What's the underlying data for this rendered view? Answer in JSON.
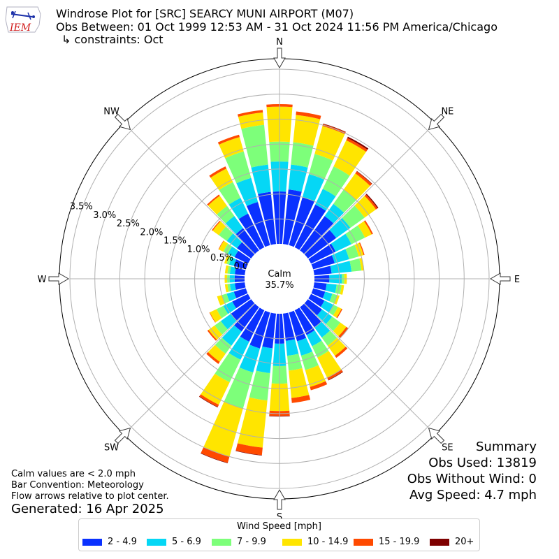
{
  "header": {
    "logo_text": "IEM",
    "title": "Windrose Plot for [SRC] SEARCY MUNI AIRPORT (M07)",
    "period": "Obs Between: 01 Oct 1999 12:53 AM - 31 Oct 2024 11:56 PM America/Chicago",
    "constraints": "↳ constraints: Oct"
  },
  "summary": {
    "heading": "Summary",
    "obs_used": "Obs Used: 13819",
    "obs_without_wind": "Obs Without Wind: 0",
    "avg_speed": "Avg Speed: 4.7 mph"
  },
  "notes": {
    "calm": "Calm values are < 2.0 mph",
    "convention": "Bar Convention: Meteorology",
    "flow": "Flow arrows relative to plot center.",
    "generated": "Generated: 16 Apr 2025"
  },
  "chart_data": {
    "type": "windrose",
    "calm_label": "Calm",
    "calm_value": "35.7%",
    "radial_ticks": [
      "0.0%",
      "0.5%",
      "1.0%",
      "1.5%",
      "2.0%",
      "2.5%",
      "3.0%",
      "3.5%"
    ],
    "radial_values": [
      0,
      0.5,
      1.0,
      1.5,
      2.0,
      2.5,
      3.0,
      3.5
    ],
    "direction_labels": [
      "N",
      "NE",
      "E",
      "SE",
      "S",
      "SW",
      "W",
      "NW"
    ],
    "legend_title": "Wind Speed [mph]",
    "speed_bins": [
      {
        "label": "2 - 4.9",
        "color": "#0a31ff"
      },
      {
        "label": "5 - 6.9",
        "color": "#05d7f5"
      },
      {
        "label": "7 - 9.9",
        "color": "#7dff7a"
      },
      {
        "label": "10 - 14.9",
        "color": "#ffe500"
      },
      {
        "label": "15 - 19.9",
        "color": "#ff4a00"
      },
      {
        "label": "20+",
        "color": "#7f0000"
      }
    ],
    "sectors": [
      {
        "dir": 0,
        "cum": [
          1.05,
          1.65,
          2.05,
          2.75,
          2.8,
          2.8
        ]
      },
      {
        "dir": 10,
        "cum": [
          1.1,
          1.6,
          2.05,
          2.6,
          2.67,
          2.67
        ]
      },
      {
        "dir": 20,
        "cum": [
          1.0,
          1.48,
          1.9,
          2.48,
          2.52,
          2.53
        ]
      },
      {
        "dir": 30,
        "cum": [
          0.95,
          1.3,
          1.8,
          2.38,
          2.43,
          2.46
        ]
      },
      {
        "dir": 40,
        "cum": [
          0.85,
          1.15,
          1.5,
          1.9,
          1.95,
          1.96
        ]
      },
      {
        "dir": 50,
        "cum": [
          0.7,
          1.05,
          1.4,
          1.68,
          1.72,
          1.74
        ]
      },
      {
        "dir": 60,
        "cum": [
          0.55,
          0.9,
          1.2,
          1.35,
          1.38,
          1.38
        ]
      },
      {
        "dir": 70,
        "cum": [
          0.45,
          0.75,
          0.95,
          1.05,
          1.07,
          1.07
        ]
      },
      {
        "dir": 80,
        "cum": [
          0.35,
          0.75,
          0.95,
          1.0,
          1.0,
          1.0
        ]
      },
      {
        "dir": 90,
        "cum": [
          0.3,
          0.55,
          0.6,
          0.65,
          0.65,
          0.65
        ]
      },
      {
        "dir": 100,
        "cum": [
          0.25,
          0.45,
          0.55,
          0.6,
          0.6,
          0.6
        ]
      },
      {
        "dir": 110,
        "cum": [
          0.25,
          0.4,
          0.5,
          0.55,
          0.55,
          0.55
        ]
      },
      {
        "dir": 120,
        "cum": [
          0.3,
          0.5,
          0.6,
          0.68,
          0.7,
          0.7
        ]
      },
      {
        "dir": 130,
        "cum": [
          0.35,
          0.6,
          0.8,
          0.95,
          1.0,
          1.0
        ]
      },
      {
        "dir": 140,
        "cum": [
          0.5,
          0.75,
          0.95,
          1.2,
          1.25,
          1.25
        ]
      },
      {
        "dir": 150,
        "cum": [
          0.55,
          0.8,
          1.05,
          1.5,
          1.55,
          1.56
        ]
      },
      {
        "dir": 160,
        "cum": [
          0.6,
          0.9,
          1.2,
          1.55,
          1.62,
          1.62
        ]
      },
      {
        "dir": 170,
        "cum": [
          0.55,
          0.85,
          1.15,
          1.7,
          1.8,
          1.8
        ]
      },
      {
        "dir": 180,
        "cum": [
          0.6,
          1.05,
          1.4,
          1.95,
          2.05,
          2.06
        ]
      },
      {
        "dir": 190,
        "cum": [
          0.7,
          1.2,
          1.75,
          2.7,
          2.85,
          2.86
        ]
      },
      {
        "dir": 200,
        "cum": [
          0.75,
          1.25,
          2.0,
          3.0,
          3.13,
          3.14
        ]
      },
      {
        "dir": 210,
        "cum": [
          0.7,
          1.1,
          1.6,
          2.1,
          2.15,
          2.16
        ]
      },
      {
        "dir": 220,
        "cum": [
          0.6,
          0.95,
          1.15,
          1.35,
          1.4,
          1.4
        ]
      },
      {
        "dir": 230,
        "cum": [
          0.5,
          0.75,
          0.9,
          1.05,
          1.08,
          1.08
        ]
      },
      {
        "dir": 240,
        "cum": [
          0.35,
          0.55,
          0.7,
          0.85,
          0.86,
          0.86
        ]
      },
      {
        "dir": 250,
        "cum": [
          0.25,
          0.4,
          0.5,
          0.6,
          0.6,
          0.6
        ]
      },
      {
        "dir": 260,
        "cum": [
          0.2,
          0.3,
          0.35,
          0.4,
          0.4,
          0.4
        ]
      },
      {
        "dir": 270,
        "cum": [
          0.2,
          0.3,
          0.35,
          0.4,
          0.4,
          0.4
        ]
      },
      {
        "dir": 280,
        "cum": [
          0.2,
          0.3,
          0.35,
          0.4,
          0.4,
          0.4
        ]
      },
      {
        "dir": 290,
        "cum": [
          0.25,
          0.35,
          0.4,
          0.45,
          0.45,
          0.45
        ]
      },
      {
        "dir": 300,
        "cum": [
          0.3,
          0.45,
          0.55,
          0.65,
          0.66,
          0.66
        ]
      },
      {
        "dir": 310,
        "cum": [
          0.35,
          0.6,
          0.8,
          0.95,
          0.97,
          0.97
        ]
      },
      {
        "dir": 320,
        "cum": [
          0.55,
          0.85,
          1.1,
          1.35,
          1.38,
          1.38
        ]
      },
      {
        "dir": 330,
        "cum": [
          0.75,
          1.1,
          1.45,
          1.75,
          1.8,
          1.8
        ]
      },
      {
        "dir": 340,
        "cum": [
          0.9,
          1.4,
          1.95,
          2.25,
          2.3,
          2.3
        ]
      },
      {
        "dir": 350,
        "cum": [
          1.05,
          1.6,
          2.4,
          2.65,
          2.7,
          2.7
        ]
      }
    ]
  }
}
